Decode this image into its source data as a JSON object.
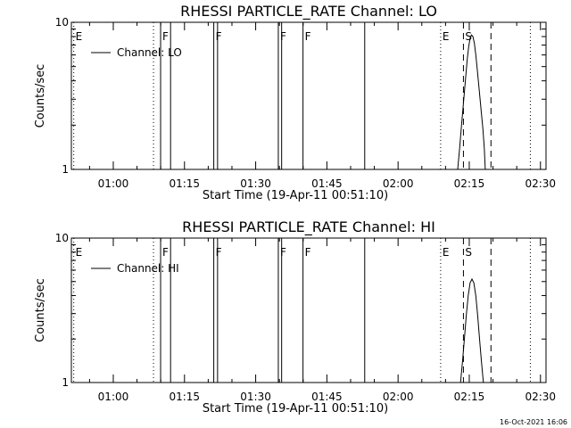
{
  "footer": {
    "date_stamp": "16-Oct-2021 16:06"
  },
  "chart_data": [
    {
      "type": "line",
      "title": "RHESSI PARTICLE_RATE Channel: LO",
      "xlabel": "Start Time (19-Apr-11 00:51:10)",
      "ylabel": "Counts/sec",
      "x_unit": "minutes after 00:51:10",
      "xlim": [
        0,
        100
      ],
      "ylim": [
        1,
        10
      ],
      "y_scale": "log",
      "y_ticks": [
        {
          "value": 1,
          "label": "1"
        },
        {
          "value": 10,
          "label": "10"
        }
      ],
      "x_ticks": [
        {
          "value": 8.83,
          "label": "01:00"
        },
        {
          "value": 23.83,
          "label": "01:15"
        },
        {
          "value": 38.83,
          "label": "01:30"
        },
        {
          "value": 53.83,
          "label": "01:45"
        },
        {
          "value": 68.83,
          "label": "02:00"
        },
        {
          "value": 83.83,
          "label": "02:15"
        },
        {
          "value": 98.83,
          "label": "02:30"
        }
      ],
      "legend": {
        "label": "Channel: LO",
        "position": "top-left"
      },
      "series": [
        {
          "name": "Channel: LO",
          "x": [
            81.4,
            81.8,
            82.2,
            82.6,
            83.0,
            83.4,
            83.7,
            84.0,
            84.3,
            84.6,
            84.9,
            85.2,
            85.5,
            85.8,
            86.1,
            86.4,
            86.7,
            87.0,
            87.2
          ],
          "y": [
            1.0,
            1.4,
            2.0,
            2.8,
            4.0,
            5.6,
            6.8,
            7.8,
            8.2,
            8.0,
            7.2,
            6.0,
            4.8,
            3.8,
            3.0,
            2.4,
            1.9,
            1.4,
            1.0
          ]
        }
      ],
      "flag_lines": [
        {
          "x": 0.5,
          "style": "dotted",
          "label": "E"
        },
        {
          "x": 17.3,
          "style": "dotted",
          "label": ""
        },
        {
          "x": 18.8,
          "style": "solid",
          "label": "F"
        },
        {
          "x": 20.9,
          "style": "solid",
          "label": ""
        },
        {
          "x": 30.0,
          "style": "solid",
          "label": "F"
        },
        {
          "x": 30.8,
          "style": "solid",
          "label": ""
        },
        {
          "x": 43.6,
          "style": "solid",
          "label": "F"
        },
        {
          "x": 44.3,
          "style": "solid",
          "label": ""
        },
        {
          "x": 48.8,
          "style": "solid",
          "label": "F"
        },
        {
          "x": 61.8,
          "style": "solid",
          "label": ""
        },
        {
          "x": 77.8,
          "style": "dotted",
          "label": "E"
        },
        {
          "x": 82.6,
          "style": "dashed",
          "label": "S"
        },
        {
          "x": 88.4,
          "style": "dashed",
          "label": ""
        },
        {
          "x": 96.7,
          "style": "dotted",
          "label": ""
        }
      ]
    },
    {
      "type": "line",
      "title": "RHESSI PARTICLE_RATE Channel: HI",
      "xlabel": "Start Time (19-Apr-11 00:51:10)",
      "ylabel": "Counts/sec",
      "x_unit": "minutes after 00:51:10",
      "xlim": [
        0,
        100
      ],
      "ylim": [
        1,
        10
      ],
      "y_scale": "log",
      "y_ticks": [
        {
          "value": 1,
          "label": "1"
        },
        {
          "value": 10,
          "label": "10"
        }
      ],
      "x_ticks": [
        {
          "value": 8.83,
          "label": "01:00"
        },
        {
          "value": 23.83,
          "label": "01:15"
        },
        {
          "value": 38.83,
          "label": "01:30"
        },
        {
          "value": 53.83,
          "label": "01:45"
        },
        {
          "value": 68.83,
          "label": "02:00"
        },
        {
          "value": 83.83,
          "label": "02:15"
        },
        {
          "value": 98.83,
          "label": "02:30"
        }
      ],
      "legend": {
        "label": "Channel: HI",
        "position": "top-left"
      },
      "series": [
        {
          "name": "Channel: HI",
          "x": [
            82.0,
            82.4,
            82.8,
            83.2,
            83.6,
            84.0,
            84.4,
            84.8,
            85.2,
            85.6,
            86.0,
            86.4,
            86.8
          ],
          "y": [
            1.0,
            1.4,
            2.0,
            2.9,
            4.0,
            4.9,
            5.2,
            4.9,
            4.0,
            2.9,
            2.0,
            1.4,
            1.0
          ]
        }
      ],
      "flag_lines": [
        {
          "x": 0.5,
          "style": "dotted",
          "label": "E"
        },
        {
          "x": 17.3,
          "style": "dotted",
          "label": ""
        },
        {
          "x": 18.8,
          "style": "solid",
          "label": "F"
        },
        {
          "x": 20.9,
          "style": "solid",
          "label": ""
        },
        {
          "x": 30.0,
          "style": "solid",
          "label": "F"
        },
        {
          "x": 30.8,
          "style": "solid",
          "label": ""
        },
        {
          "x": 43.6,
          "style": "solid",
          "label": "F"
        },
        {
          "x": 44.3,
          "style": "solid",
          "label": ""
        },
        {
          "x": 48.8,
          "style": "solid",
          "label": "F"
        },
        {
          "x": 61.8,
          "style": "solid",
          "label": ""
        },
        {
          "x": 77.8,
          "style": "dotted",
          "label": "E"
        },
        {
          "x": 82.6,
          "style": "dashed",
          "label": "S"
        },
        {
          "x": 88.4,
          "style": "dashed",
          "label": ""
        },
        {
          "x": 96.7,
          "style": "dotted",
          "label": ""
        }
      ]
    }
  ]
}
